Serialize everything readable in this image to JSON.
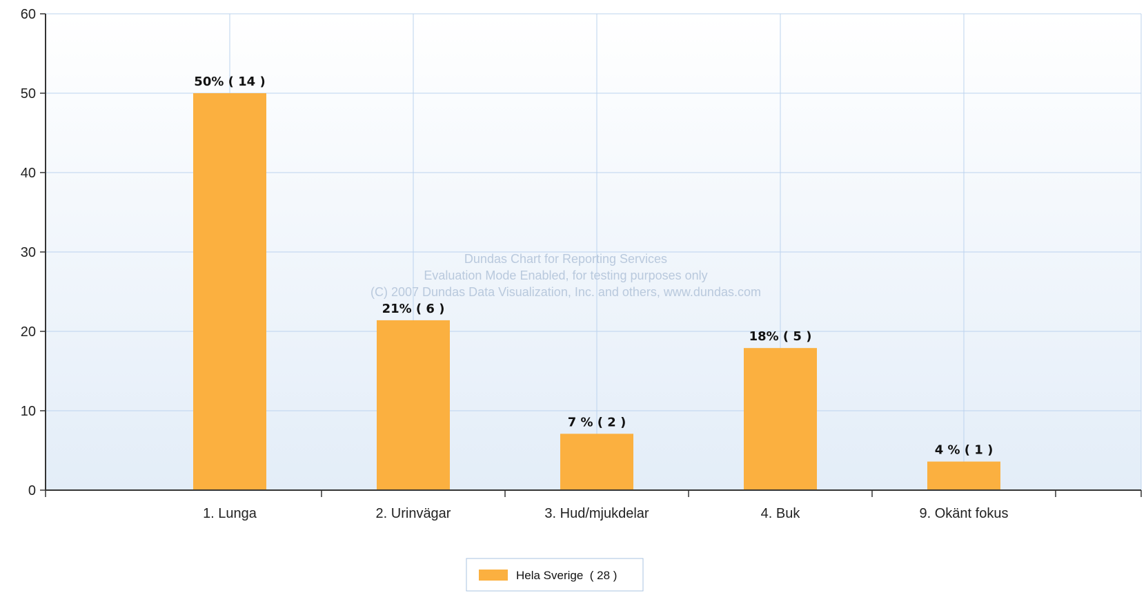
{
  "chart_data": {
    "type": "bar",
    "categories": [
      "1. Lunga",
      "2. Urinvägar",
      "3. Hud/mjukdelar",
      "4. Buk",
      "9. Okänt fokus"
    ],
    "series": [
      {
        "name": "Hela Sverige  ( 28 )",
        "values": [
          50,
          21.4,
          7.1,
          17.9,
          3.6
        ],
        "labels": [
          "50% ( 14 )",
          "21% ( 6 )",
          "7 % ( 2 )",
          "18% ( 5 )",
          "4 % ( 1 )"
        ],
        "color": "#FBB040"
      }
    ],
    "ylim": [
      0,
      60
    ],
    "yticks": [
      0,
      10,
      20,
      30,
      40,
      50,
      60
    ],
    "grid": true,
    "legend_position": "bottom-center",
    "xlabel": "",
    "ylabel": "",
    "title": ""
  },
  "watermark": [
    "Dundas Chart for Reporting Services",
    "Evaluation Mode Enabled, for testing purposes only",
    "(C) 2007 Dundas Data Visualization, Inc. and others, www.dundas.com"
  ],
  "colors": {
    "grid": "#bcd3ee",
    "plot_bg_top": "#ffffff",
    "plot_bg_bottom": "#e3edf8",
    "axis": "#333333"
  }
}
